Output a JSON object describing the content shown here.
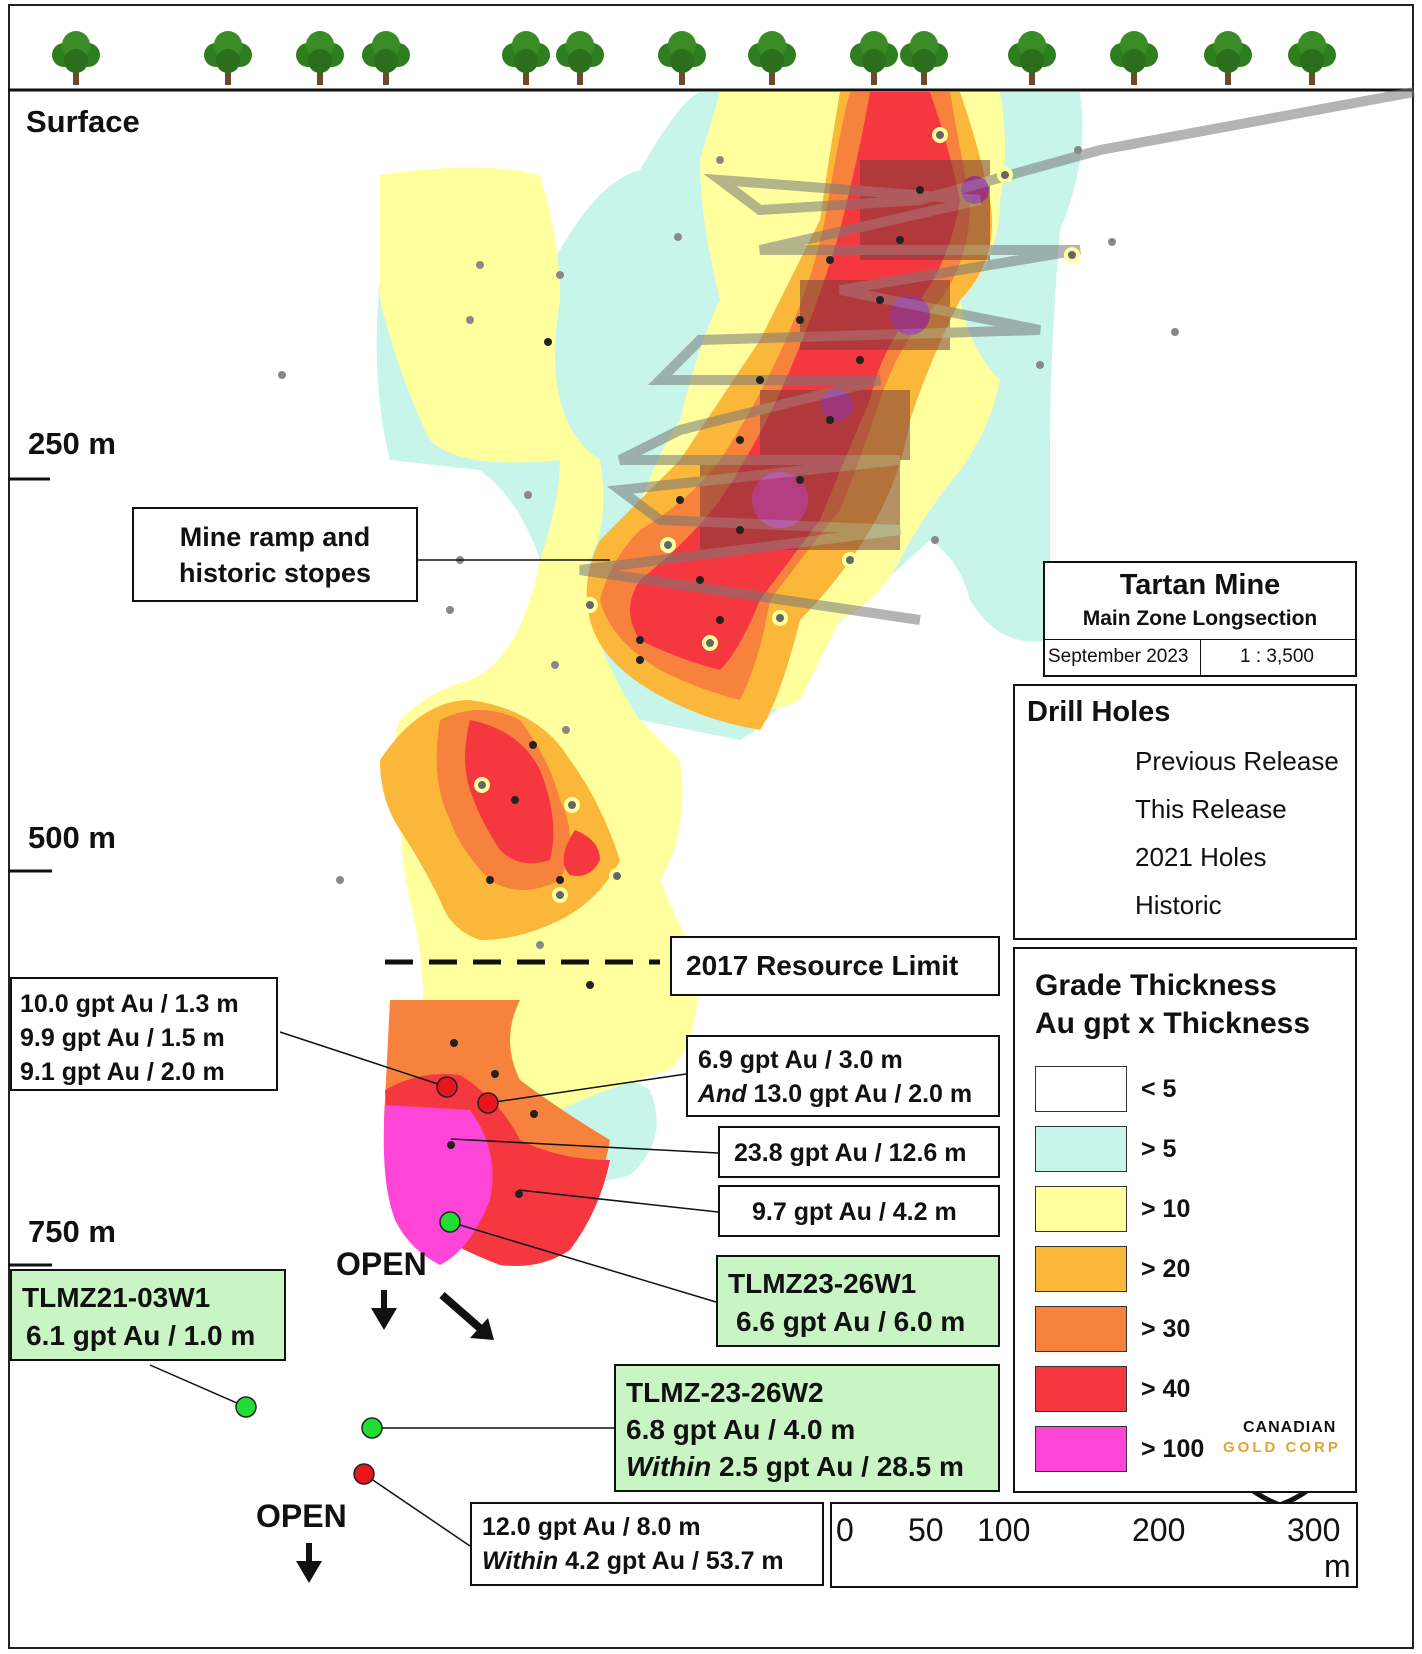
{
  "labels": {
    "surface": "Surface",
    "depth_250": "250 m",
    "depth_500": "500 m",
    "depth_750": "750 m",
    "mine_ramp": [
      "Mine ramp and",
      "historic stopes"
    ],
    "resource_limit": "2017 Resource Limit",
    "open_1": "OPEN",
    "open_2": "OPEN"
  },
  "intercepts": {
    "left": [
      "10.0 gpt Au / 1.3 m",
      "9.9 gpt Au / 1.5 m",
      "9.1 gpt Au / 2.0 m"
    ],
    "right1": {
      "line1": "6.9 gpt Au / 3.0 m",
      "line2_em": "And",
      "line2": " 13.0 gpt Au / 2.0 m"
    },
    "right2": "23.8 gpt Au / 12.6 m",
    "right3": "9.7 gpt Au / 4.2 m",
    "tlmz23_26w1": {
      "name": "TLMZ23-26W1",
      "value": "6.6 gpt Au / 6.0 m"
    },
    "tlmz21_03w1": {
      "name": "TLMZ21-03W1",
      "value": "6.1 gpt Au / 1.0 m"
    },
    "tlmz23_26w2": {
      "name": "TLMZ-23-26W2",
      "value": "6.8 gpt Au / 4.0 m",
      "line3_em": "Within",
      "line3": " 2.5 gpt Au / 28.5 m"
    },
    "bottom": {
      "line1": "12.0 gpt Au / 8.0 m",
      "line2_em": "Within",
      "line2": " 4.2 gpt Au / 53.7 m"
    }
  },
  "title_block": {
    "title": "Tartan Mine",
    "subtitle": "Main Zone Longsection",
    "date": "September 2023",
    "scale": "1 : 3,500"
  },
  "drill_holes": {
    "heading": "Drill Holes",
    "items": [
      {
        "label": "Previous Release",
        "color": "#e8161b"
      },
      {
        "label": "This Release",
        "color": "#22dd33"
      },
      {
        "label": "2021 Holes",
        "color": "#000000"
      },
      {
        "label": "Historic",
        "color": "#888888"
      }
    ]
  },
  "grade_legend": {
    "title1": "Grade Thickness",
    "title2": "Au gpt x Thickness",
    "items": [
      {
        "label": "< 5",
        "color": "#ffffff"
      },
      {
        "label": "> 5",
        "color": "#c8f5ea"
      },
      {
        "label": "> 10",
        "color": "#ffff9e"
      },
      {
        "label": "> 20",
        "color": "#fbb73a"
      },
      {
        "label": "> 30",
        "color": "#f7823e"
      },
      {
        "label": "> 40",
        "color": "#f5383f"
      },
      {
        "label": "> 100",
        "color": "#ff44d8"
      }
    ]
  },
  "scale_bar": {
    "ticks": [
      "0",
      "50",
      "100",
      "200",
      "300"
    ],
    "unit": "m"
  },
  "logo": {
    "line1": "CANADIAN",
    "line2": "GOLD CORP"
  }
}
